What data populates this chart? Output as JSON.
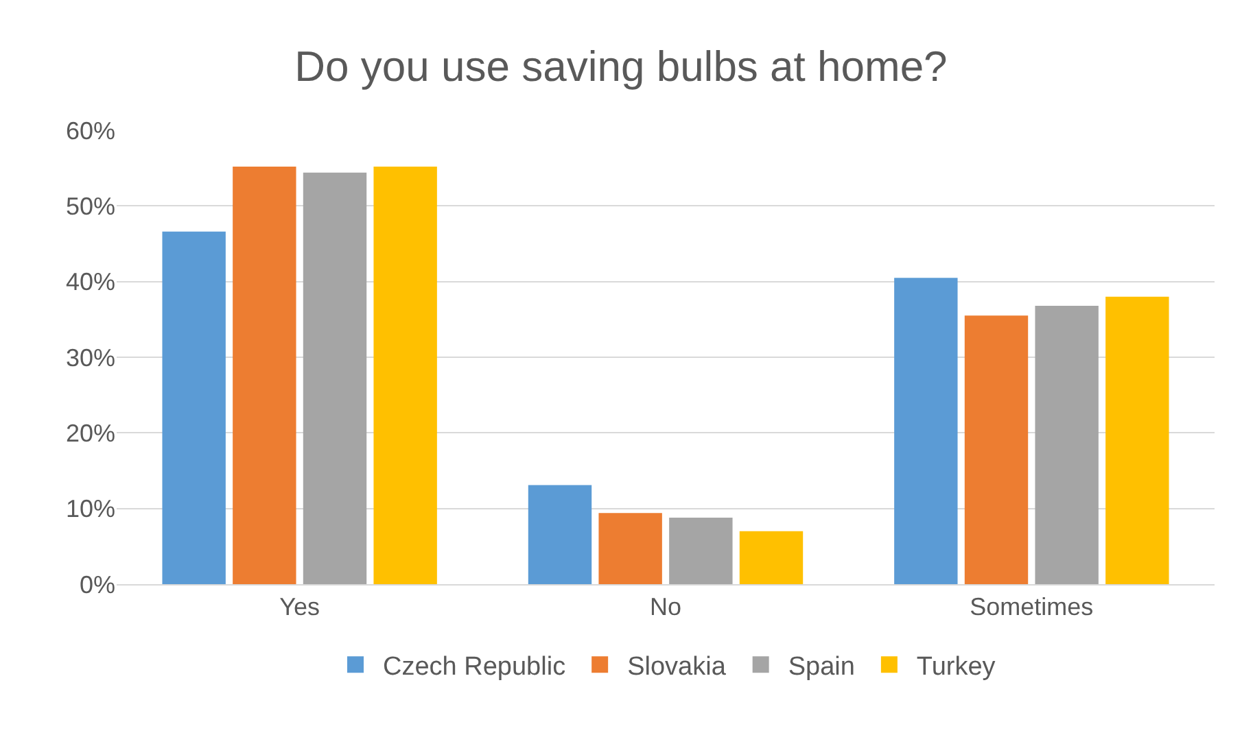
{
  "chart_data": {
    "type": "bar",
    "title": "Do you use saving bulbs at home?",
    "categories": [
      "Yes",
      "No",
      "Sometimes"
    ],
    "series": [
      {
        "name": "Czech Republic",
        "color": "#5b9bd5",
        "values": [
          46.6,
          13.1,
          40.5
        ]
      },
      {
        "name": "Slovakia",
        "color": "#ed7d31",
        "values": [
          55.2,
          9.4,
          35.5
        ]
      },
      {
        "name": "Spain",
        "color": "#a5a5a5",
        "values": [
          54.4,
          8.8,
          36.8
        ]
      },
      {
        "name": "Turkey",
        "color": "#ffc000",
        "values": [
          55.2,
          7.0,
          38.0
        ]
      }
    ],
    "ylim": [
      0,
      60
    ],
    "yticks": [
      {
        "value": 0,
        "label": "0%"
      },
      {
        "value": 10,
        "label": "10%"
      },
      {
        "value": 20,
        "label": "20%"
      },
      {
        "value": 30,
        "label": "30%"
      },
      {
        "value": 40,
        "label": "40%"
      },
      {
        "value": 50,
        "label": "50%"
      },
      {
        "value": 60,
        "label": "60%"
      }
    ],
    "grid": "y",
    "legend": "bottom"
  }
}
